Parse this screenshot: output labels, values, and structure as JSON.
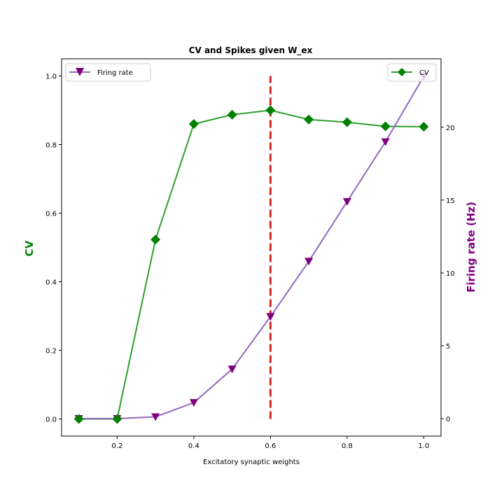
{
  "chart_data": {
    "type": "line",
    "title": "CV and Spikes given W_ex",
    "xlabel": "Excitatory synaptic weights",
    "ylabel_left": "CV",
    "ylabel_right": "Firing rate (Hz)",
    "x": [
      0.1,
      0.2,
      0.3,
      0.4,
      0.5,
      0.6,
      0.7,
      0.8,
      0.9,
      1.0
    ],
    "xlim": [
      0.055,
      1.045
    ],
    "xticks": [
      0.2,
      0.4,
      0.6,
      0.8,
      1.0
    ],
    "xtick_labels": [
      "0.2",
      "0.4",
      "0.6",
      "0.8",
      "1.0"
    ],
    "ylim_left": [
      -0.05,
      1.05
    ],
    "yticks_left": [
      0.0,
      0.2,
      0.4,
      0.6,
      0.8,
      1.0
    ],
    "ytick_labels_left": [
      "0.0",
      "0.2",
      "0.4",
      "0.6",
      "0.8",
      "1.0"
    ],
    "ylim_right": [
      -1.2,
      24.7
    ],
    "yticks_right": [
      0,
      5,
      10,
      15,
      20
    ],
    "ytick_labels_right": [
      "0",
      "5",
      "10",
      "15",
      "20"
    ],
    "series": [
      {
        "name": "CV",
        "axis": "left",
        "values": [
          0.0,
          0.0,
          0.523,
          0.86,
          0.887,
          0.9,
          0.873,
          0.865,
          0.853,
          0.852
        ],
        "line_color": "#2ca02c",
        "marker_color": "#008000",
        "marker": "diamond"
      },
      {
        "name": "Firing rate",
        "axis": "right",
        "values": [
          0.0,
          0.0,
          0.12,
          1.1,
          3.4,
          7.0,
          10.8,
          14.9,
          19.0,
          23.5
        ],
        "line_color": "#9467bd",
        "marker_color": "#800080",
        "marker": "triangle-down"
      }
    ],
    "vline": {
      "x": 0.6,
      "y_from": 0.0,
      "y_to": 1.0,
      "color": "#d62728",
      "style": "dashed"
    },
    "legends": [
      {
        "series": "Firing rate",
        "placement": "upper left"
      },
      {
        "series": "CV",
        "placement": "upper right"
      }
    ],
    "grid": false,
    "colors": {
      "cv_label": "#008000",
      "fr_label": "#800080"
    }
  }
}
